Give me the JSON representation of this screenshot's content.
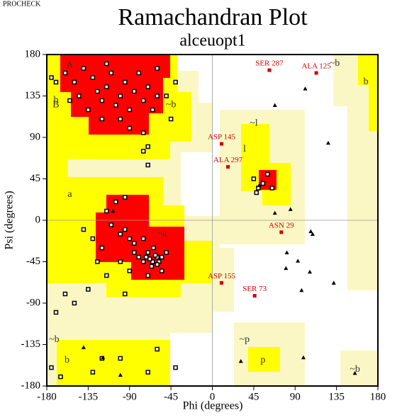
{
  "header": "PROCHECK",
  "chart_data": {
    "type": "scatter",
    "title": "Ramachandran Plot",
    "subtitle": "alceuopt1",
    "x_label": "Phi (degrees)",
    "y_label": "Psi (degrees)",
    "xlim": [
      -180,
      180
    ],
    "ylim": [
      -180,
      180
    ],
    "xticks": [
      -180,
      -135,
      -90,
      -45,
      0,
      45,
      90,
      135,
      180
    ],
    "yticks": [
      -180,
      -135,
      -90,
      -45,
      0,
      45,
      90,
      135,
      180
    ],
    "zero_lines": true,
    "series": [
      {
        "marker": "square",
        "color": "#000000",
        "x": [
          -160,
          -150,
          -140,
          -130,
          -125,
          -120,
          -115,
          -110,
          -105,
          -100,
          -95,
          -90,
          -85,
          -80,
          -75,
          -70,
          -65,
          -60,
          -135,
          -145,
          -155,
          -120,
          -100,
          -90,
          -75,
          -70,
          -75,
          -70,
          -115,
          -170,
          -175,
          -50,
          -45,
          -40,
          -60,
          -70,
          -65,
          -60,
          -62,
          -68,
          -58,
          -72,
          -64,
          -66,
          -60,
          -55,
          -75,
          -80,
          -85,
          -90,
          -95,
          -100,
          -110,
          -115,
          -105,
          -95,
          -85,
          -120,
          -130,
          -90,
          -70,
          -55,
          -50,
          -100,
          -75,
          -125,
          -140,
          -115,
          -95,
          -135,
          -150,
          -160,
          -170,
          -175,
          -165,
          -130,
          -100,
          -70,
          -60,
          -40,
          -120,
          45,
          50,
          55,
          48,
          60,
          65
        ],
        "values": [
          160,
          150,
          165,
          155,
          140,
          130,
          145,
          160,
          125,
          135,
          150,
          120,
          140,
          160,
          130,
          145,
          120,
          135,
          120,
          135,
          130,
          110,
          110,
          100,
          95,
          80,
          75,
          60,
          170,
          150,
          155,
          135,
          110,
          150,
          165,
          -35,
          -45,
          -40,
          -38,
          -42,
          -45,
          -40,
          -30,
          -50,
          -48,
          -40,
          -45,
          -40,
          -35,
          -20,
          -10,
          -15,
          -5,
          10,
          20,
          25,
          -25,
          -30,
          -20,
          -55,
          -60,
          -55,
          -35,
          -45,
          -20,
          -45,
          -10,
          -60,
          -80,
          -75,
          -90,
          -80,
          -100,
          -160,
          -170,
          -165,
          -150,
          -165,
          -140,
          -160,
          -150,
          45,
          35,
          40,
          30,
          50,
          35
        ]
      },
      {
        "marker": "triangle",
        "color": "#000000",
        "x": [
          101,
          126,
          85,
          109,
          81,
          93,
          80,
          106,
          132,
          97,
          107,
          68,
          51,
          68,
          -108,
          -140,
          -119,
          -100,
          99,
          155,
          31
        ],
        "values": [
          143,
          84,
          12,
          -15,
          -35,
          -44,
          -52,
          -56,
          -68,
          -76,
          -12,
          8,
          38,
          125,
          10,
          -138,
          -149,
          -168,
          -149,
          -166,
          -153
        ]
      }
    ],
    "annotations": [
      {
        "text": "SER 287",
        "x": 62,
        "y": 163
      },
      {
        "text": "ALA 125",
        "x": 113,
        "y": 160
      },
      {
        "text": "ASP 145",
        "x": 10,
        "y": 83
      },
      {
        "text": "ALA 297",
        "x": 17,
        "y": 58
      },
      {
        "text": "ASN 29",
        "x": 75,
        "y": -13
      },
      {
        "text": "ASP 155",
        "x": 10,
        "y": -68
      },
      {
        "text": "SER 73",
        "x": 46,
        "y": -82
      }
    ],
    "annotation_color": "#d00000",
    "region_labels": [
      {
        "text": "A",
        "x": -155,
        "y": 168
      },
      {
        "text": "B",
        "x": -170,
        "y": 125
      },
      {
        "text": "b",
        "x": -170,
        "y": 130
      },
      {
        "text": "~b",
        "x": -45,
        "y": 125
      },
      {
        "text": "~l",
        "x": 45,
        "y": 105
      },
      {
        "text": "l",
        "x": 35,
        "y": 77
      },
      {
        "text": "L",
        "x": 55,
        "y": 40
      },
      {
        "text": "a",
        "x": -155,
        "y": 28
      },
      {
        "text": "~a",
        "x": -55,
        "y": -15
      },
      {
        "text": "~b",
        "x": -172,
        "y": -130
      },
      {
        "text": "b",
        "x": -158,
        "y": -152
      },
      {
        "text": "~p",
        "x": 35,
        "y": -130
      },
      {
        "text": "p",
        "x": 55,
        "y": -152
      },
      {
        "text": "~b",
        "x": 155,
        "y": -162
      },
      {
        "text": "~b",
        "x": 133,
        "y": 170
      },
      {
        "text": "b",
        "x": 167,
        "y": 150
      }
    ]
  }
}
